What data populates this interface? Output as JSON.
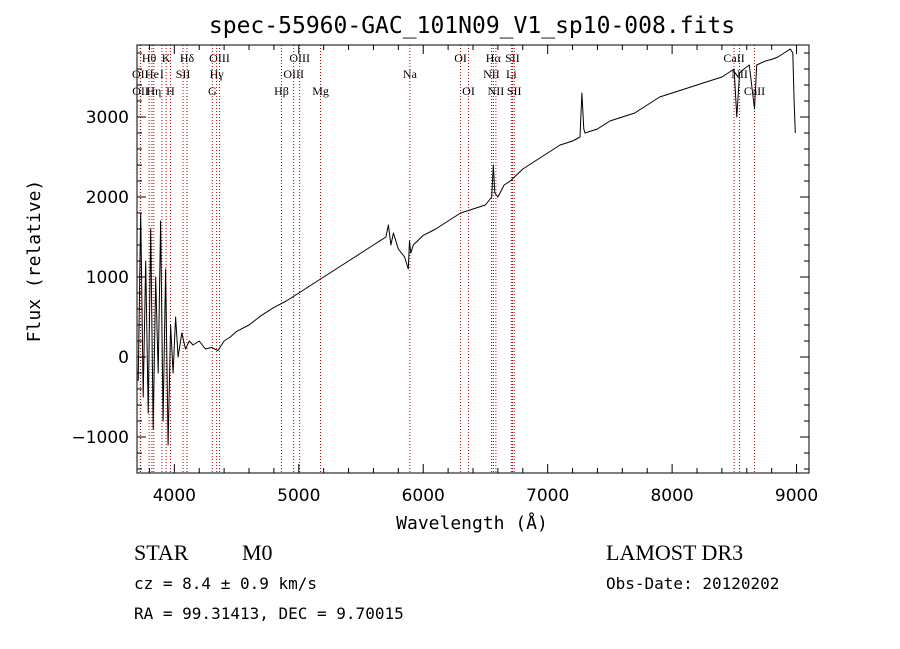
{
  "chart_data": {
    "type": "line",
    "title": "spec-55960-GAC_101N09_V1_sp10-008.fits",
    "xlabel": "Wavelength (Å)",
    "ylabel": "Flux (relative)",
    "xlim": [
      3700,
      9100
    ],
    "ylim": [
      -1450,
      3900
    ],
    "xticks": [
      4000,
      5000,
      6000,
      7000,
      8000,
      9000
    ],
    "yticks": [
      -1000,
      0,
      1000,
      2000,
      3000
    ],
    "xtick_labels": [
      "4000",
      "5000",
      "6000",
      "7000",
      "8000",
      "9000"
    ],
    "ytick_labels": [
      "−1000",
      "0",
      "1000",
      "2000",
      "3000"
    ],
    "series": [
      {
        "name": "spectrum",
        "x": [
          3710,
          3730,
          3750,
          3770,
          3790,
          3810,
          3830,
          3850,
          3870,
          3890,
          3910,
          3930,
          3950,
          3970,
          3990,
          4010,
          4030,
          4060,
          4090,
          4120,
          4150,
          4200,
          4250,
          4300,
          4350,
          4400,
          4450,
          4500,
          4600,
          4700,
          4800,
          4900,
          5000,
          5100,
          5200,
          5300,
          5400,
          5500,
          5600,
          5700,
          5720,
          5740,
          5760,
          5800,
          5850,
          5880,
          5890,
          5900,
          5920,
          6000,
          6100,
          6200,
          6300,
          6400,
          6500,
          6550,
          6563,
          6575,
          6600,
          6650,
          6700,
          6800,
          6900,
          7000,
          7100,
          7200,
          7260,
          7275,
          7290,
          7300,
          7400,
          7500,
          7600,
          7700,
          7800,
          7900,
          8000,
          8100,
          8200,
          8300,
          8400,
          8450,
          8498,
          8520,
          8542,
          8560,
          8620,
          8662,
          8680,
          8750,
          8800,
          8850,
          8900,
          8950,
          8970,
          8980,
          8990
        ],
        "values": [
          -300,
          1800,
          -500,
          1200,
          -700,
          1600,
          -900,
          1000,
          -200,
          1700,
          -800,
          1100,
          -1100,
          400,
          -200,
          500,
          0,
          300,
          100,
          200,
          150,
          200,
          100,
          120,
          80,
          200,
          250,
          320,
          400,
          520,
          620,
          700,
          800,
          900,
          1000,
          1100,
          1200,
          1300,
          1400,
          1500,
          1650,
          1400,
          1550,
          1350,
          1250,
          1100,
          1450,
          1300,
          1400,
          1520,
          1600,
          1700,
          1800,
          1850,
          1900,
          2000,
          2400,
          2050,
          2000,
          2150,
          2200,
          2350,
          2450,
          2550,
          2650,
          2700,
          2750,
          3300,
          2850,
          2800,
          2850,
          2950,
          3000,
          3050,
          3150,
          3250,
          3300,
          3350,
          3400,
          3450,
          3500,
          3550,
          3600,
          3000,
          3550,
          3580,
          3650,
          3100,
          3650,
          3700,
          3720,
          3750,
          3800,
          3850,
          3800,
          3200,
          2800
        ]
      }
    ],
    "line_markers": [
      {
        "label": "Hθ",
        "x": 3797,
        "row": 1
      },
      {
        "label": "OII",
        "x": 3727,
        "row": 2
      },
      {
        "label": "OII",
        "x": 3729,
        "row": 3
      },
      {
        "label": "He",
        "x": 3820,
        "row": 2
      },
      {
        "label": "Hη",
        "x": 3835,
        "row": 3
      },
      {
        "label": "K",
        "x": 3934,
        "row": 1
      },
      {
        "label": "I",
        "x": 3900,
        "row": 2
      },
      {
        "label": "SII",
        "x": 4070,
        "row": 2
      },
      {
        "label": "H",
        "x": 3969,
        "row": 3
      },
      {
        "label": "Hδ",
        "x": 4102,
        "row": 1
      },
      {
        "label": "OIII",
        "x": 4363,
        "row": 1
      },
      {
        "label": "Hγ",
        "x": 4340,
        "row": 2
      },
      {
        "label": "G",
        "x": 4305,
        "row": 3
      },
      {
        "label": "Hβ",
        "x": 4861,
        "row": 3
      },
      {
        "label": "OIII",
        "x": 5007,
        "row": 1
      },
      {
        "label": "OIII",
        "x": 4959,
        "row": 2
      },
      {
        "label": "Mg",
        "x": 5175,
        "row": 3
      },
      {
        "label": "Na",
        "x": 5893,
        "row": 2
      },
      {
        "label": "OI",
        "x": 6300,
        "row": 1
      },
      {
        "label": "OI",
        "x": 6364,
        "row": 3
      },
      {
        "label": "Hα",
        "x": 6563,
        "row": 1
      },
      {
        "label": "NII",
        "x": 6548,
        "row": 2
      },
      {
        "label": "NII",
        "x": 6584,
        "row": 3
      },
      {
        "label": "SII",
        "x": 6717,
        "row": 1
      },
      {
        "label": "Li",
        "x": 6708,
        "row": 2
      },
      {
        "label": "SII",
        "x": 6731,
        "row": 3
      },
      {
        "label": "CaII",
        "x": 8498,
        "row": 1
      },
      {
        "label": "NII",
        "x": 8542,
        "row": 2
      },
      {
        "label": "CaII",
        "x": 8662,
        "row": 3
      }
    ]
  },
  "info": {
    "object_class": "STAR",
    "subclass": "M0",
    "survey": "LAMOST DR3",
    "cz": "cz = 8.4 ± 0.9 km/s",
    "obs_date": "Obs-Date: 20120202",
    "coords": "RA =  99.31413, DEC =   9.70015"
  },
  "colors": {
    "axes": "#000000",
    "spectrum": "#000000",
    "marker_lines": "#aa0000"
  }
}
